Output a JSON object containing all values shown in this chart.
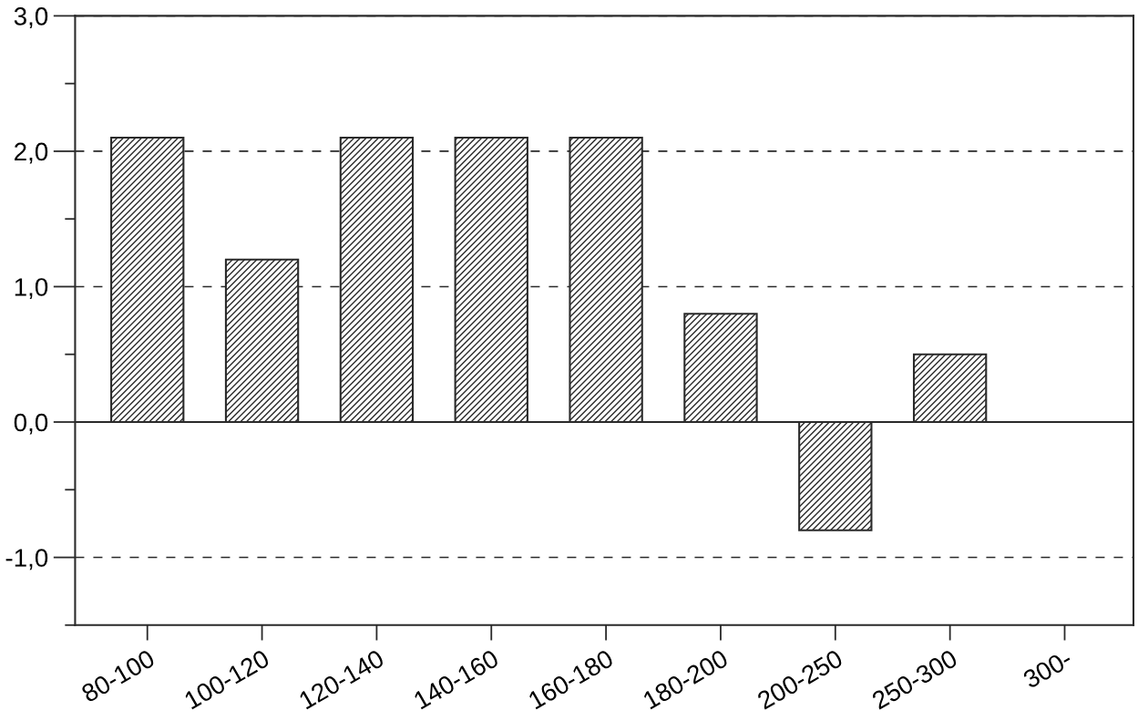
{
  "chart_data": {
    "type": "bar",
    "categories": [
      "80-100",
      "100-120",
      "120-140",
      "140-160",
      "160-180",
      "180-200",
      "200-250",
      "250-300",
      "300-"
    ],
    "values": [
      2.1,
      1.2,
      2.1,
      2.1,
      2.1,
      0.8,
      -0.8,
      0.5,
      null
    ],
    "color": "#2a2a2a",
    "ylim": [
      -1.5,
      3.0
    ],
    "yticks": [
      {
        "value": -1.5,
        "label": null
      },
      {
        "value": -1,
        "label": "-1,0"
      },
      {
        "value": -0.5,
        "label": null
      },
      {
        "value": 0,
        "label": "0,0"
      },
      {
        "value": 0.5,
        "label": null
      },
      {
        "value": 1,
        "label": "1,0"
      },
      {
        "value": 1.5,
        "label": null
      },
      {
        "value": 2,
        "label": "2,0"
      },
      {
        "value": 2.5,
        "label": null
      },
      {
        "value": 3,
        "label": "3,0"
      }
    ],
    "grid": "y",
    "ref_lines": [
      {
        "axis": "y",
        "value": 0,
        "color": "#2a2a2a",
        "line_style": "solid"
      }
    ]
  }
}
